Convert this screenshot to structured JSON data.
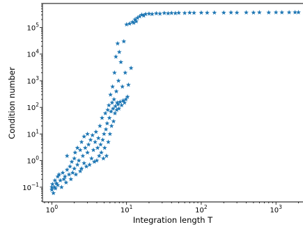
{
  "chart_data": {
    "type": "scatter",
    "marker": "star",
    "title": "",
    "xlabel": "Integration length T",
    "ylabel": "Condition number",
    "xscale": "log",
    "yscale": "log",
    "xlim": [
      0.75,
      2300
    ],
    "ylim": [
      0.028,
      800000
    ],
    "grid": false,
    "colors": {
      "points": "#1f77b4",
      "axes": "#000000",
      "background": "#ffffff"
    },
    "x_ticks": [
      {
        "value": 1,
        "base": "10",
        "exp": "0"
      },
      {
        "value": 10,
        "base": "10",
        "exp": "1"
      },
      {
        "value": 100,
        "base": "10",
        "exp": "2"
      },
      {
        "value": 1000,
        "base": "10",
        "exp": "3"
      }
    ],
    "y_ticks": [
      {
        "value": 0.1,
        "base": "10",
        "exp": "−1"
      },
      {
        "value": 1,
        "base": "10",
        "exp": "0"
      },
      {
        "value": 10,
        "base": "10",
        "exp": "1"
      },
      {
        "value": 100,
        "base": "10",
        "exp": "2"
      },
      {
        "value": 1000,
        "base": "10",
        "exp": "3"
      },
      {
        "value": 10000,
        "base": "10",
        "exp": "4"
      },
      {
        "value": 100000,
        "base": "10",
        "exp": "5"
      }
    ],
    "points": [
      [
        1.0,
        0.1
      ],
      [
        1.0,
        0.08
      ],
      [
        1.02,
        0.13
      ],
      [
        1.05,
        0.06
      ],
      [
        1.08,
        0.1
      ],
      [
        1.1,
        0.18
      ],
      [
        1.12,
        0.09
      ],
      [
        1.15,
        0.14
      ],
      [
        1.2,
        0.25
      ],
      [
        1.2,
        0.12
      ],
      [
        1.25,
        0.3
      ],
      [
        1.3,
        0.18
      ],
      [
        1.35,
        0.1
      ],
      [
        1.4,
        0.35
      ],
      [
        1.45,
        0.2
      ],
      [
        1.5,
        0.25
      ],
      [
        1.55,
        0.15
      ],
      [
        1.6,
        0.45
      ],
      [
        1.6,
        1.5
      ],
      [
        1.7,
        0.3
      ],
      [
        1.75,
        0.6
      ],
      [
        1.8,
        0.2
      ],
      [
        1.85,
        0.9
      ],
      [
        1.9,
        0.35
      ],
      [
        2.0,
        0.5
      ],
      [
        2.0,
        1.2
      ],
      [
        2.05,
        2.0
      ],
      [
        2.1,
        0.3
      ],
      [
        2.2,
        0.7
      ],
      [
        2.2,
        3.0
      ],
      [
        2.3,
        1.0
      ],
      [
        2.4,
        0.4
      ],
      [
        2.4,
        2.5
      ],
      [
        2.5,
        0.5
      ],
      [
        2.5,
        5.0
      ],
      [
        2.6,
        1.5
      ],
      [
        2.7,
        0.8
      ],
      [
        2.7,
        8.0
      ],
      [
        2.8,
        3.0
      ],
      [
        2.9,
        0.6
      ],
      [
        3.0,
        2.0
      ],
      [
        3.0,
        10.0
      ],
      [
        3.1,
        4.0
      ],
      [
        3.2,
        0.7
      ],
      [
        3.3,
        6.0
      ],
      [
        3.4,
        1.2
      ],
      [
        3.5,
        9.0
      ],
      [
        3.6,
        2.5
      ],
      [
        3.7,
        0.9
      ],
      [
        3.8,
        5.0
      ],
      [
        3.9,
        12.0
      ],
      [
        4.0,
        1.0
      ],
      [
        4.1,
        3.0
      ],
      [
        4.2,
        7.0
      ],
      [
        4.3,
        1.5
      ],
      [
        4.4,
        20.0
      ],
      [
        4.5,
        4.0
      ],
      [
        4.6,
        2.0
      ],
      [
        4.7,
        40.0
      ],
      [
        4.8,
        6.0
      ],
      [
        4.9,
        1.2
      ],
      [
        5.0,
        10.0
      ],
      [
        5.1,
        3.0
      ],
      [
        5.2,
        60.0
      ],
      [
        5.3,
        15.0
      ],
      [
        5.4,
        1.5
      ],
      [
        5.5,
        25.0
      ],
      [
        5.6,
        80.0
      ],
      [
        5.7,
        5.0
      ],
      [
        5.8,
        120.0
      ],
      [
        5.9,
        40.0
      ],
      [
        6.0,
        10.0
      ],
      [
        6.1,
        300.0
      ],
      [
        6.2,
        70.0
      ],
      [
        6.3,
        20.0
      ],
      [
        6.4,
        150.0
      ],
      [
        6.5,
        600.0
      ],
      [
        6.6,
        90.0
      ],
      [
        6.7,
        30.0
      ],
      [
        6.8,
        200.0
      ],
      [
        6.9,
        2000.0
      ],
      [
        7.0,
        60.0
      ],
      [
        7.1,
        110.0
      ],
      [
        7.2,
        8000.0
      ],
      [
        7.3,
        400.0
      ],
      [
        7.4,
        80.0
      ],
      [
        7.5,
        150.0
      ],
      [
        7.6,
        25000.0
      ],
      [
        7.7,
        130.0
      ],
      [
        7.8,
        1000.0
      ],
      [
        7.9,
        90.0
      ],
      [
        8.0,
        12000.0
      ],
      [
        8.2,
        160.0
      ],
      [
        8.4,
        5000.0
      ],
      [
        8.6,
        120.0
      ],
      [
        8.8,
        600.0
      ],
      [
        9.0,
        180.0
      ],
      [
        9.2,
        30000.0
      ],
      [
        9.4,
        150.0
      ],
      [
        9.6,
        2000.0
      ],
      [
        9.8,
        200.0
      ],
      [
        10.0,
        130000.0
      ],
      [
        10.3,
        250.0
      ],
      [
        10.6,
        700.0
      ],
      [
        11.0,
        140000.0
      ],
      [
        11.5,
        3000.0
      ],
      [
        12.0,
        160000.0
      ],
      [
        12.5,
        150000.0
      ],
      [
        13.0,
        200000.0
      ],
      [
        13.5,
        170000.0
      ],
      [
        14.0,
        230000.0
      ],
      [
        15.0,
        260000.0
      ],
      [
        16.0,
        300000.0
      ],
      [
        17.0,
        280000.0
      ],
      [
        18.0,
        320000.0
      ],
      [
        20.0,
        330000.0
      ],
      [
        22.0,
        320000.0
      ],
      [
        25.0,
        340000.0
      ],
      [
        28.0,
        330000.0
      ],
      [
        32.0,
        350000.0
      ],
      [
        36.0,
        340000.0
      ],
      [
        40.0,
        350000.0
      ],
      [
        45.0,
        345000.0
      ],
      [
        50.0,
        355000.0
      ],
      [
        60.0,
        350000.0
      ],
      [
        70.0,
        360000.0
      ],
      [
        80.0,
        355000.0
      ],
      [
        100.0,
        360000.0
      ],
      [
        120.0,
        358000.0
      ],
      [
        150.0,
        362000.0
      ],
      [
        200.0,
        360000.0
      ],
      [
        250.0,
        365000.0
      ],
      [
        300.0,
        362000.0
      ],
      [
        400.0,
        366000.0
      ],
      [
        500.0,
        364000.0
      ],
      [
        600.0,
        368000.0
      ],
      [
        800.0,
        366000.0
      ],
      [
        1000.0,
        370000.0
      ],
      [
        1200.0,
        368000.0
      ],
      [
        1500.0,
        370000.0
      ],
      [
        1800.0,
        372000.0
      ],
      [
        2000.0,
        371000.0
      ]
    ]
  }
}
